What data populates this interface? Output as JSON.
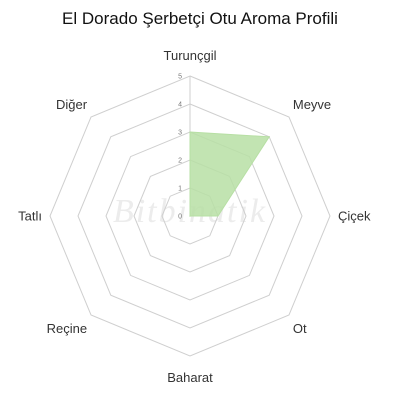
{
  "chart_data": {
    "type": "radar",
    "title": "El Dorado Şerbetçi Otu Aroma Profili",
    "categories": [
      "Turunçgil",
      "Meyve",
      "Çiçek",
      "Ot",
      "Baharat",
      "Reçine",
      "Tatlı",
      "Diğer"
    ],
    "series": [
      {
        "values": [
          3,
          4,
          1,
          0,
          0,
          0,
          0,
          0
        ]
      }
    ],
    "rlim": [
      0,
      5
    ],
    "ticks": [
      "0",
      "1",
      "2",
      "3",
      "4",
      "5"
    ],
    "grid": true,
    "legend": "none",
    "colors": {
      "fill": "#b7dfa4",
      "fill_opacity": 0.85,
      "grid": "#cfcfcf"
    }
  },
  "watermark": {
    "text": "Bitbinatik"
  }
}
